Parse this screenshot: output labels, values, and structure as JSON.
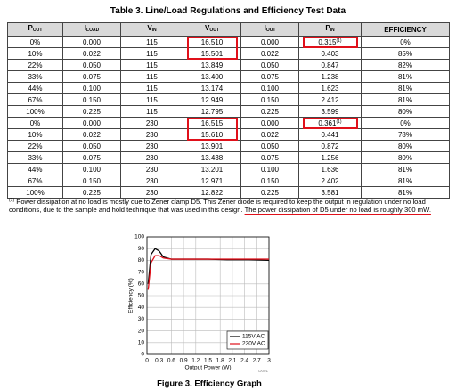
{
  "title": "Table 3. Line/Load Regulations and Efficiency Test Data",
  "table": {
    "headers": [
      {
        "main": "P",
        "sub": "OUT"
      },
      {
        "main": "I",
        "sub": "LOAD"
      },
      {
        "main": "V",
        "sub": "IN"
      },
      {
        "main": "V",
        "sub": "OUT"
      },
      {
        "main": "I",
        "sub": "OUT"
      },
      {
        "main": "P",
        "sub": "IN"
      },
      "EFFICIENCY"
    ],
    "rows": [
      [
        "0%",
        "0.000",
        "115",
        "16.510",
        "0.000",
        {
          "text": "0.315",
          "sup": "(1)"
        },
        "0%"
      ],
      [
        "10%",
        "0.022",
        "115",
        "15.501",
        "0.022",
        "0.403",
        "85%"
      ],
      [
        "22%",
        "0.050",
        "115",
        "13.849",
        "0.050",
        "0.847",
        "82%"
      ],
      [
        "33%",
        "0.075",
        "115",
        "13.400",
        "0.075",
        "1.238",
        "81%"
      ],
      [
        "44%",
        "0.100",
        "115",
        "13.174",
        "0.100",
        "1.623",
        "81%"
      ],
      [
        "67%",
        "0.150",
        "115",
        "12.949",
        "0.150",
        "2.412",
        "81%"
      ],
      [
        "100%",
        "0.225",
        "115",
        "12.795",
        "0.225",
        "3.599",
        "80%"
      ],
      [
        "0%",
        "0.000",
        "230",
        "16.515",
        "0.000",
        {
          "text": "0.361",
          "sup": "(1)"
        },
        "0%"
      ],
      [
        "10%",
        "0.022",
        "230",
        "15.610",
        "0.022",
        "0.441",
        "78%"
      ],
      [
        "22%",
        "0.050",
        "230",
        "13.901",
        "0.050",
        "0.872",
        "80%"
      ],
      [
        "33%",
        "0.075",
        "230",
        "13.438",
        "0.075",
        "1.256",
        "80%"
      ],
      [
        "44%",
        "0.100",
        "230",
        "13.201",
        "0.100",
        "1.636",
        "81%"
      ],
      [
        "67%",
        "0.150",
        "230",
        "12.971",
        "0.150",
        "2.402",
        "81%"
      ],
      [
        "100%",
        "0.225",
        "230",
        "12.822",
        "0.225",
        "3.581",
        "81%"
      ]
    ]
  },
  "footnote": {
    "marker": "(1)",
    "text": "Power dissipation at no load is mostly due to Zener clamp D5. This Zener diode is required to keep the output in regulation under no load conditions, due to the sample and hold technique that was used in this design. ",
    "highlight": "The power dissipation of D5 under no load is roughly 300 mW."
  },
  "chart_data": {
    "type": "line",
    "xlabel": "Output Power (W)",
    "ylabel": "Efficiency (%)",
    "caption": "Figure 3. Efficiency Graph",
    "code": "D001",
    "x": [
      0.03,
      0.1,
      0.2,
      0.3,
      0.4,
      0.6,
      1,
      1.5,
      2,
      2.5,
      3
    ],
    "series": [
      {
        "name": "115V AC",
        "color": "#000000",
        "values": [
          60,
          85,
          90,
          88,
          83,
          81,
          81,
          81,
          80.5,
          80.5,
          80
        ]
      },
      {
        "name": "230V AC",
        "color": "#e0101a",
        "values": [
          55,
          78,
          84,
          84,
          82,
          81,
          81,
          81,
          81,
          81,
          81
        ]
      }
    ],
    "xlim": [
      0,
      3
    ],
    "ylim": [
      0,
      100
    ],
    "xticks": [
      0,
      0.3,
      0.6,
      0.9,
      1.2,
      1.5,
      1.8,
      2.1,
      2.4,
      2.7,
      3
    ],
    "yticks": [
      0,
      10,
      20,
      30,
      40,
      50,
      60,
      70,
      80,
      90,
      100
    ],
    "grid": true
  }
}
